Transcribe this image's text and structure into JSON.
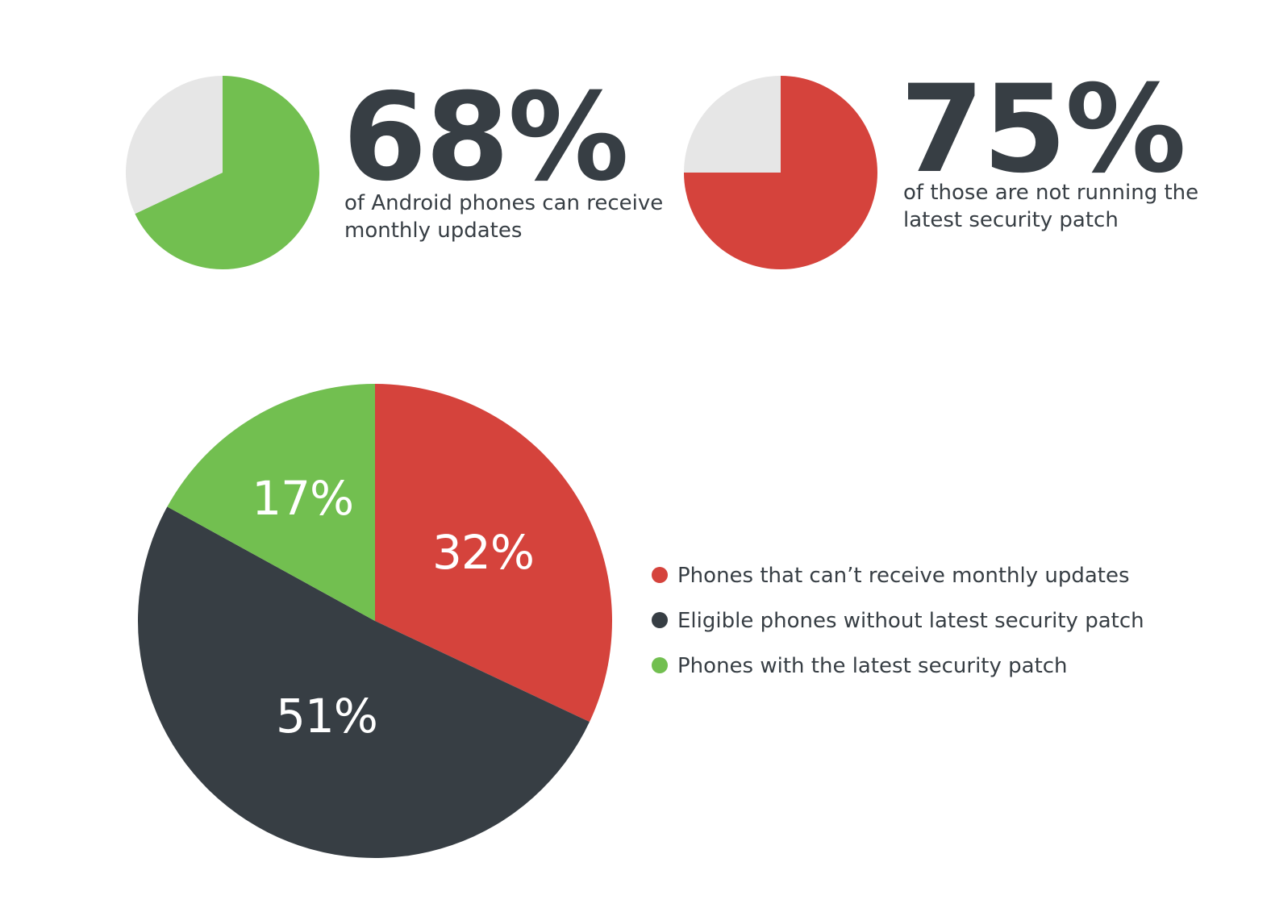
{
  "chart_data": [
    {
      "type": "pie",
      "stat": {
        "value_text": "68%",
        "caption_lines": [
          "of Android phones can receive",
          "monthly updates"
        ]
      },
      "slices": [
        {
          "value": 68,
          "color": "#72bf50"
        },
        {
          "value": 32,
          "color": "#e6e6e6"
        }
      ]
    },
    {
      "type": "pie",
      "stat": {
        "value_text": "75%",
        "caption_lines": [
          "of those are not running the",
          "latest security patch"
        ]
      },
      "slices": [
        {
          "value": 75,
          "color": "#d5433c"
        },
        {
          "value": 25,
          "color": "#e6e6e6"
        }
      ]
    },
    {
      "type": "pie",
      "slices": [
        {
          "name": "Phones that can’t receive monthly updates",
          "value": 32,
          "label": "32%",
          "color": "#d5433c"
        },
        {
          "name": "Eligible phones without latest security patch",
          "value": 51,
          "label": "51%",
          "color": "#373e44"
        },
        {
          "name": "Phones with the latest security patch",
          "value": 17,
          "label": "17%",
          "color": "#72bf50"
        }
      ],
      "legend": {
        "placement": "right",
        "entries": [
          {
            "label": "Phones that can’t receive monthly updates",
            "color": "#d5433c"
          },
          {
            "label": "Eligible phones without latest security patch",
            "color": "#373e44"
          },
          {
            "label": "Phones with the latest security patch",
            "color": "#72bf50"
          }
        ]
      }
    }
  ]
}
